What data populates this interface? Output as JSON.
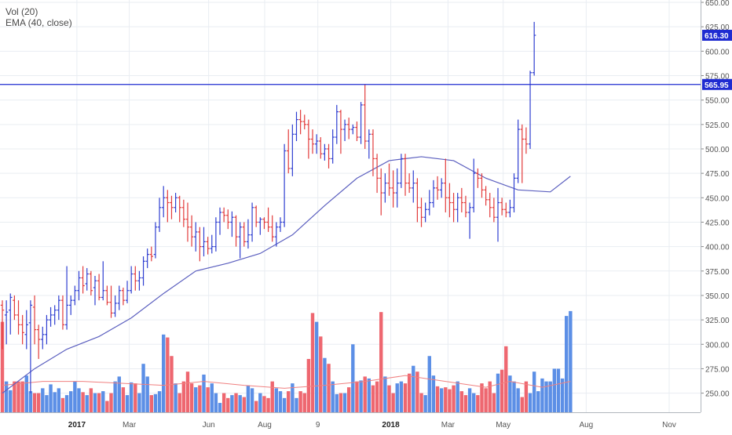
{
  "legend": {
    "vol_label": "Vol (20)",
    "ema_label": "EMA (40, close)"
  },
  "colors": {
    "background": "#ffffff",
    "grid": "#e9edf2",
    "axis_text": "#555555",
    "up": "#2f3fd1",
    "down": "#e23b3b",
    "vol_up": "#5c8fe6",
    "vol_down": "#ee6770",
    "ema": "#5b5fbf",
    "vol_ma": "#f08080",
    "hline": "#1f2bd1",
    "price_label_bg": "#1f2bd1",
    "price_label_text": "#ffffff"
  },
  "chart_data": {
    "type": "ohlc",
    "y_axis": {
      "range": [
        225,
        650
      ],
      "ticks": [
        "650.00",
        "625.00",
        "600.00",
        "575.00",
        "550.00",
        "525.00",
        "500.00",
        "475.00",
        "450.00",
        "425.00",
        "400.00",
        "375.00",
        "350.00",
        "325.00",
        "300.00",
        "275.00",
        "250.00"
      ],
      "position": "right"
    },
    "x_axis": {
      "ticks": [
        {
          "label": "2017",
          "i": 18.5,
          "bold": true
        },
        {
          "label": "Mar",
          "i": 31.5,
          "bold": false
        },
        {
          "label": "Jun",
          "i": 51.2,
          "bold": false
        },
        {
          "label": "Aug",
          "i": 65.1,
          "bold": false
        },
        {
          "label": "9",
          "i": 78.3,
          "bold": false
        },
        {
          "label": "2018",
          "i": 96.4,
          "bold": true
        },
        {
          "label": "Mar",
          "i": 110.6,
          "bold": false
        },
        {
          "label": "May",
          "i": 124.3,
          "bold": false
        },
        {
          "label": "Aug",
          "i": 144.9,
          "bold": false
        },
        {
          "label": "Nov",
          "i": 165.5,
          "bold": false
        }
      ],
      "n_slots": 182
    },
    "horizontal_line": {
      "value": 565.95,
      "label": "565.95"
    },
    "last_price_label": {
      "value": 616.3,
      "label": "616.30"
    },
    "grid": true,
    "bars": [
      {
        "o": 340,
        "h": 345,
        "l": 295,
        "c": 335
      },
      {
        "o": 330,
        "h": 345,
        "l": 300,
        "c": 333
      },
      {
        "o": 335,
        "h": 352,
        "l": 310,
        "c": 348
      },
      {
        "o": 345,
        "h": 350,
        "l": 325,
        "c": 330
      },
      {
        "o": 330,
        "h": 345,
        "l": 310,
        "c": 320
      },
      {
        "o": 320,
        "h": 330,
        "l": 300,
        "c": 312
      },
      {
        "o": 310,
        "h": 335,
        "l": 295,
        "c": 320
      },
      {
        "o": 322,
        "h": 345,
        "l": 250,
        "c": 340
      },
      {
        "o": 338,
        "h": 350,
        "l": 300,
        "c": 315
      },
      {
        "o": 315,
        "h": 320,
        "l": 285,
        "c": 305
      },
      {
        "o": 305,
        "h": 318,
        "l": 295,
        "c": 310
      },
      {
        "o": 310,
        "h": 330,
        "l": 300,
        "c": 325
      },
      {
        "o": 325,
        "h": 338,
        "l": 318,
        "c": 330
      },
      {
        "o": 330,
        "h": 340,
        "l": 320,
        "c": 335
      },
      {
        "o": 335,
        "h": 350,
        "l": 325,
        "c": 345
      },
      {
        "o": 345,
        "h": 350,
        "l": 315,
        "c": 320
      },
      {
        "o": 320,
        "h": 380,
        "l": 315,
        "c": 340
      },
      {
        "o": 340,
        "h": 350,
        "l": 330,
        "c": 345
      },
      {
        "o": 345,
        "h": 360,
        "l": 340,
        "c": 355
      },
      {
        "o": 355,
        "h": 375,
        "l": 345,
        "c": 368
      },
      {
        "o": 368,
        "h": 380,
        "l": 352,
        "c": 360
      },
      {
        "o": 362,
        "h": 378,
        "l": 355,
        "c": 372
      },
      {
        "o": 372,
        "h": 375,
        "l": 350,
        "c": 355
      },
      {
        "o": 358,
        "h": 370,
        "l": 340,
        "c": 365
      },
      {
        "o": 365,
        "h": 372,
        "l": 345,
        "c": 348
      },
      {
        "o": 348,
        "h": 385,
        "l": 345,
        "c": 355
      },
      {
        "o": 355,
        "h": 360,
        "l": 340,
        "c": 343
      },
      {
        "o": 343,
        "h": 360,
        "l": 327,
        "c": 332
      },
      {
        "o": 332,
        "h": 350,
        "l": 328,
        "c": 342
      },
      {
        "o": 342,
        "h": 360,
        "l": 335,
        "c": 355
      },
      {
        "o": 355,
        "h": 358,
        "l": 340,
        "c": 345
      },
      {
        "o": 345,
        "h": 365,
        "l": 342,
        "c": 355
      },
      {
        "o": 355,
        "h": 380,
        "l": 352,
        "c": 372
      },
      {
        "o": 372,
        "h": 380,
        "l": 355,
        "c": 365
      },
      {
        "o": 365,
        "h": 375,
        "l": 355,
        "c": 368
      },
      {
        "o": 368,
        "h": 390,
        "l": 360,
        "c": 385
      },
      {
        "o": 385,
        "h": 398,
        "l": 378,
        "c": 392
      },
      {
        "o": 392,
        "h": 400,
        "l": 385,
        "c": 390
      },
      {
        "o": 392,
        "h": 425,
        "l": 388,
        "c": 420
      },
      {
        "o": 420,
        "h": 450,
        "l": 415,
        "c": 440
      },
      {
        "o": 440,
        "h": 462,
        "l": 430,
        "c": 450
      },
      {
        "o": 450,
        "h": 458,
        "l": 425,
        "c": 445
      },
      {
        "o": 445,
        "h": 452,
        "l": 428,
        "c": 440
      },
      {
        "o": 440,
        "h": 455,
        "l": 435,
        "c": 450
      },
      {
        "o": 450,
        "h": 452,
        "l": 425,
        "c": 440
      },
      {
        "o": 440,
        "h": 448,
        "l": 420,
        "c": 428
      },
      {
        "o": 428,
        "h": 445,
        "l": 405,
        "c": 420
      },
      {
        "o": 420,
        "h": 432,
        "l": 400,
        "c": 410
      },
      {
        "o": 410,
        "h": 425,
        "l": 395,
        "c": 415
      },
      {
        "o": 415,
        "h": 420,
        "l": 385,
        "c": 400
      },
      {
        "o": 400,
        "h": 420,
        "l": 390,
        "c": 405
      },
      {
        "o": 405,
        "h": 410,
        "l": 392,
        "c": 398
      },
      {
        "o": 398,
        "h": 412,
        "l": 393,
        "c": 400
      },
      {
        "o": 400,
        "h": 430,
        "l": 395,
        "c": 425
      },
      {
        "o": 425,
        "h": 440,
        "l": 412,
        "c": 435
      },
      {
        "o": 435,
        "h": 440,
        "l": 425,
        "c": 432
      },
      {
        "o": 432,
        "h": 438,
        "l": 418,
        "c": 425
      },
      {
        "o": 425,
        "h": 436,
        "l": 410,
        "c": 430
      },
      {
        "o": 430,
        "h": 432,
        "l": 400,
        "c": 410
      },
      {
        "o": 410,
        "h": 425,
        "l": 388,
        "c": 420
      },
      {
        "o": 420,
        "h": 425,
        "l": 400,
        "c": 405
      },
      {
        "o": 405,
        "h": 428,
        "l": 398,
        "c": 412
      },
      {
        "o": 412,
        "h": 445,
        "l": 405,
        "c": 440
      },
      {
        "o": 440,
        "h": 442,
        "l": 420,
        "c": 425
      },
      {
        "o": 425,
        "h": 430,
        "l": 412,
        "c": 428
      },
      {
        "o": 428,
        "h": 430,
        "l": 418,
        "c": 425
      },
      {
        "o": 425,
        "h": 440,
        "l": 415,
        "c": 420
      },
      {
        "o": 420,
        "h": 432,
        "l": 405,
        "c": 410
      },
      {
        "o": 410,
        "h": 425,
        "l": 400,
        "c": 420
      },
      {
        "o": 420,
        "h": 430,
        "l": 415,
        "c": 425
      },
      {
        "o": 425,
        "h": 505,
        "l": 420,
        "c": 498
      },
      {
        "o": 498,
        "h": 520,
        "l": 475,
        "c": 480
      },
      {
        "o": 480,
        "h": 525,
        "l": 472,
        "c": 515
      },
      {
        "o": 515,
        "h": 538,
        "l": 508,
        "c": 530
      },
      {
        "o": 530,
        "h": 540,
        "l": 515,
        "c": 528
      },
      {
        "o": 528,
        "h": 535,
        "l": 520,
        "c": 525
      },
      {
        "o": 525,
        "h": 530,
        "l": 490,
        "c": 510
      },
      {
        "o": 510,
        "h": 520,
        "l": 495,
        "c": 505
      },
      {
        "o": 505,
        "h": 515,
        "l": 495,
        "c": 508
      },
      {
        "o": 508,
        "h": 512,
        "l": 490,
        "c": 495
      },
      {
        "o": 495,
        "h": 505,
        "l": 488,
        "c": 500
      },
      {
        "o": 500,
        "h": 505,
        "l": 480,
        "c": 490
      },
      {
        "o": 490,
        "h": 520,
        "l": 485,
        "c": 512
      },
      {
        "o": 512,
        "h": 545,
        "l": 505,
        "c": 538
      },
      {
        "o": 538,
        "h": 540,
        "l": 495,
        "c": 520
      },
      {
        "o": 520,
        "h": 530,
        "l": 508,
        "c": 525
      },
      {
        "o": 525,
        "h": 532,
        "l": 510,
        "c": 520
      },
      {
        "o": 520,
        "h": 525,
        "l": 515,
        "c": 522
      },
      {
        "o": 522,
        "h": 528,
        "l": 508,
        "c": 512
      },
      {
        "o": 512,
        "h": 548,
        "l": 505,
        "c": 545
      },
      {
        "o": 545,
        "h": 566,
        "l": 500,
        "c": 508
      },
      {
        "o": 508,
        "h": 520,
        "l": 490,
        "c": 515
      },
      {
        "o": 515,
        "h": 520,
        "l": 472,
        "c": 490
      },
      {
        "o": 490,
        "h": 495,
        "l": 455,
        "c": 470
      },
      {
        "o": 470,
        "h": 480,
        "l": 432,
        "c": 455
      },
      {
        "o": 455,
        "h": 475,
        "l": 445,
        "c": 465
      },
      {
        "o": 465,
        "h": 485,
        "l": 452,
        "c": 460
      },
      {
        "o": 460,
        "h": 478,
        "l": 440,
        "c": 455
      },
      {
        "o": 455,
        "h": 480,
        "l": 440,
        "c": 465
      },
      {
        "o": 465,
        "h": 495,
        "l": 460,
        "c": 490
      },
      {
        "o": 490,
        "h": 495,
        "l": 452,
        "c": 465
      },
      {
        "o": 465,
        "h": 475,
        "l": 455,
        "c": 460
      },
      {
        "o": 460,
        "h": 478,
        "l": 445,
        "c": 465
      },
      {
        "o": 465,
        "h": 470,
        "l": 425,
        "c": 440
      },
      {
        "o": 440,
        "h": 450,
        "l": 420,
        "c": 430
      },
      {
        "o": 430,
        "h": 445,
        "l": 425,
        "c": 438
      },
      {
        "o": 438,
        "h": 458,
        "l": 432,
        "c": 445
      },
      {
        "o": 445,
        "h": 468,
        "l": 440,
        "c": 460
      },
      {
        "o": 460,
        "h": 472,
        "l": 448,
        "c": 458
      },
      {
        "o": 458,
        "h": 470,
        "l": 450,
        "c": 465
      },
      {
        "o": 465,
        "h": 490,
        "l": 435,
        "c": 450
      },
      {
        "o": 450,
        "h": 465,
        "l": 430,
        "c": 445
      },
      {
        "o": 445,
        "h": 455,
        "l": 425,
        "c": 438
      },
      {
        "o": 438,
        "h": 455,
        "l": 425,
        "c": 450
      },
      {
        "o": 450,
        "h": 460,
        "l": 435,
        "c": 445
      },
      {
        "o": 445,
        "h": 452,
        "l": 430,
        "c": 435
      },
      {
        "o": 435,
        "h": 445,
        "l": 408,
        "c": 440
      },
      {
        "o": 440,
        "h": 490,
        "l": 435,
        "c": 475
      },
      {
        "o": 475,
        "h": 480,
        "l": 460,
        "c": 470
      },
      {
        "o": 470,
        "h": 475,
        "l": 450,
        "c": 458
      },
      {
        "o": 458,
        "h": 462,
        "l": 442,
        "c": 448
      },
      {
        "o": 448,
        "h": 455,
        "l": 430,
        "c": 440
      },
      {
        "o": 440,
        "h": 450,
        "l": 425,
        "c": 430
      },
      {
        "o": 430,
        "h": 460,
        "l": 405,
        "c": 445
      },
      {
        "o": 445,
        "h": 450,
        "l": 432,
        "c": 438
      },
      {
        "o": 438,
        "h": 445,
        "l": 430,
        "c": 435
      },
      {
        "o": 435,
        "h": 448,
        "l": 430,
        "c": 440
      },
      {
        "o": 440,
        "h": 475,
        "l": 435,
        "c": 470
      },
      {
        "o": 470,
        "h": 530,
        "l": 465,
        "c": 520
      },
      {
        "o": 520,
        "h": 525,
        "l": 465,
        "c": 510
      },
      {
        "o": 510,
        "h": 522,
        "l": 495,
        "c": 505
      },
      {
        "o": 505,
        "h": 580,
        "l": 500,
        "c": 578
      },
      {
        "o": 578,
        "h": 630,
        "l": 575,
        "c": 616.3
      }
    ],
    "series": [
      {
        "name": "EMA (40, close)",
        "x_indices": [
          0,
          8,
          16,
          24,
          32,
          40,
          48,
          56,
          64,
          72,
          80,
          88,
          96,
          104,
          112,
          120,
          128,
          136,
          141
        ],
        "values": [
          250,
          275,
          295,
          308,
          327,
          352,
          375,
          383,
          393,
          412,
          442,
          470,
          488,
          492,
          488,
          470,
          458,
          456,
          472
        ]
      }
    ],
    "volume_series": {
      "name": "Vol (20)",
      "values": [
        323,
        262,
        253,
        262,
        262,
        262,
        268,
        252,
        250,
        250,
        255,
        248,
        259,
        251,
        255,
        245,
        248,
        252,
        262,
        255,
        251,
        248,
        255,
        250,
        250,
        252,
        242,
        250,
        262,
        267,
        256,
        248,
        261,
        260,
        250,
        280,
        267,
        248,
        249,
        252,
        310,
        307,
        288,
        260,
        250,
        262,
        272,
        260,
        256,
        258,
        269,
        256,
        260,
        250,
        240,
        250,
        245,
        248,
        250,
        248,
        246,
        258,
        255,
        242,
        250,
        247,
        245,
        262,
        255,
        252,
        245,
        252,
        260,
        245,
        252,
        250,
        285,
        332,
        323,
        308,
        286,
        280,
        262,
        249,
        250,
        250,
        256,
        300,
        262,
        263,
        267,
        265,
        258,
        262,
        333,
        267,
        258,
        250,
        260,
        262,
        260,
        270,
        278,
        272,
        250,
        248,
        288,
        268,
        257,
        255,
        256,
        254,
        258,
        262,
        252,
        248,
        255,
        250,
        248,
        260,
        255,
        262,
        250,
        270,
        274,
        298,
        268,
        262,
        255,
        246,
        262,
        250,
        272,
        252,
        265,
        262,
        262,
        275,
        275,
        265,
        329,
        334
      ]
    },
    "vol_ma_x_indices": [
      0,
      10,
      20,
      30,
      40,
      50,
      60,
      70,
      80,
      90,
      100,
      110,
      120,
      126,
      134,
      141
    ],
    "vol_ma_values": [
      258,
      262,
      262,
      260,
      258,
      262,
      258,
      255,
      258,
      262,
      268,
      262,
      256,
      262,
      256,
      262
    ]
  }
}
